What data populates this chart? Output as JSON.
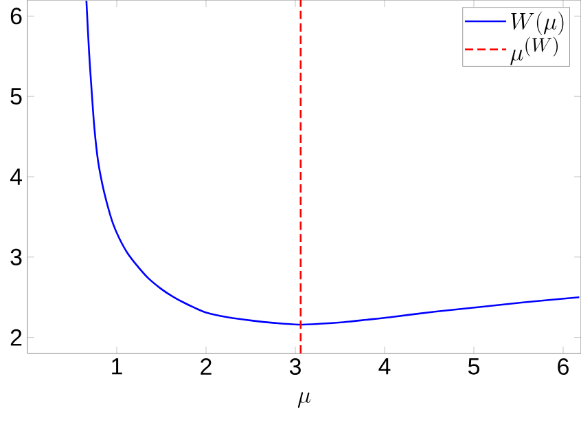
{
  "chart_data": {
    "type": "line",
    "xlabel": "\\mu",
    "series": [
      {
        "name": "W(\\mu)",
        "color": "#0000ff",
        "line_style": "solid",
        "x": [
          0.66,
          0.69,
          0.72,
          0.75,
          0.79,
          0.84,
          0.9,
          0.96,
          1.03,
          1.12,
          1.23,
          1.35,
          1.49,
          1.61,
          1.74,
          1.87,
          2.0,
          2.25,
          2.51,
          2.77,
          3.03,
          3.28,
          3.54,
          3.8,
          4.05,
          4.56,
          5.08,
          5.59,
          6.18
        ],
        "values": [
          6.19,
          5.55,
          5.05,
          4.6,
          4.2,
          3.9,
          3.63,
          3.41,
          3.23,
          3.05,
          2.89,
          2.74,
          2.61,
          2.52,
          2.44,
          2.37,
          2.31,
          2.25,
          2.21,
          2.18,
          2.16,
          2.17,
          2.19,
          2.22,
          2.25,
          2.32,
          2.38,
          2.44,
          2.5
        ]
      },
      {
        "name": "\\mu^{(W)}",
        "color": "#ff0000",
        "line_style": "dashed",
        "x": [
          3.06,
          3.06
        ],
        "values": [
          1.8,
          6.2
        ]
      }
    ],
    "xlim": [
      0,
      6.2
    ],
    "ylim": [
      1.8,
      6.2
    ],
    "xticks": [
      1,
      2,
      3,
      4,
      5,
      6
    ],
    "yticks": [
      2,
      3,
      4,
      5,
      6
    ],
    "grid": false,
    "legend": "top right",
    "marker": "none"
  }
}
